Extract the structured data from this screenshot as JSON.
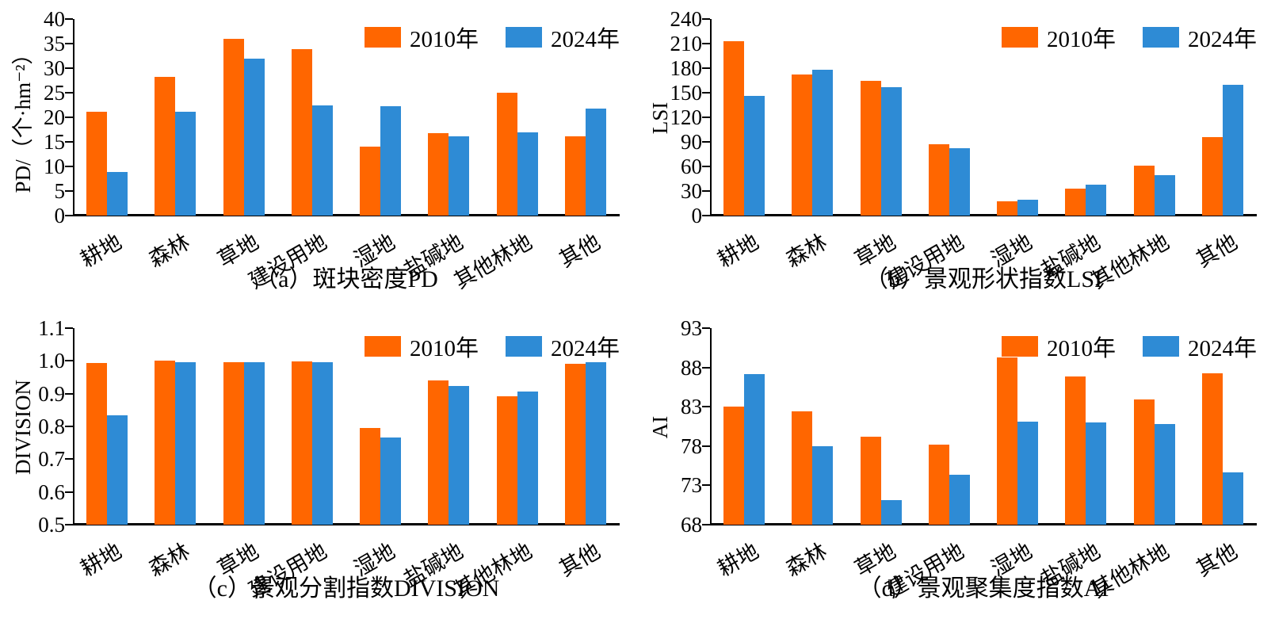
{
  "legend": {
    "labels": [
      "2010年",
      "2024年"
    ]
  },
  "colors": {
    "year2010": "#FF6600",
    "year2024": "#2E8BD5",
    "axis": "#000000"
  },
  "chart_data": [
    {
      "type": "bar",
      "title": "（a）斑块密度PD",
      "ylabel": "PD/（个·hm⁻²）",
      "xlabel": "",
      "categories": [
        "耕地",
        "森林",
        "草地",
        "建设用地",
        "湿地",
        "盐碱地",
        "其他林地",
        "其他"
      ],
      "series": [
        {
          "name": "2010年",
          "color": "#FF6600",
          "values": [
            21.1,
            28.3,
            36.0,
            33.9,
            14.0,
            16.7,
            25.0,
            16.2
          ]
        },
        {
          "name": "2024年",
          "color": "#2E8BD5",
          "values": [
            8.9,
            21.1,
            32.0,
            22.5,
            22.2,
            16.2,
            17.0,
            21.7
          ]
        }
      ],
      "ylim": [
        0,
        40
      ],
      "yticks": [
        "0",
        "5",
        "10",
        "15",
        "20",
        "25",
        "30",
        "35",
        "40"
      ],
      "grid": false,
      "legend_position": "top-right"
    },
    {
      "type": "bar",
      "title": "（b）景观形状指数LSI",
      "ylabel": "LSI",
      "xlabel": "",
      "categories": [
        "耕地",
        "森林",
        "草地",
        "建设用地",
        "湿地",
        "盐碱地",
        "其他林地",
        "其他"
      ],
      "series": [
        {
          "name": "2010年",
          "color": "#FF6600",
          "values": [
            213,
            172,
            165,
            87,
            17,
            33,
            61,
            96
          ]
        },
        {
          "name": "2024年",
          "color": "#2E8BD5",
          "values": [
            146,
            178,
            157,
            82,
            19,
            38,
            49,
            160
          ]
        }
      ],
      "ylim": [
        0,
        240
      ],
      "yticks": [
        "0",
        "30",
        "60",
        "90",
        "120",
        "150",
        "180",
        "210",
        "240"
      ],
      "grid": false,
      "legend_position": "top-right"
    },
    {
      "type": "bar",
      "title": "（c）景观分割指数DIVISION",
      "ylabel": "DIVISION",
      "xlabel": "",
      "categories": [
        "耕地",
        "森林",
        "草地",
        "建设用地",
        "湿地",
        "盐碱地",
        "其他林地",
        "其他"
      ],
      "series": [
        {
          "name": "2010年",
          "color": "#FF6600",
          "values": [
            0.994,
            1.0,
            0.996,
            0.998,
            0.795,
            0.94,
            0.893,
            0.99
          ]
        },
        {
          "name": "2024年",
          "color": "#2E8BD5",
          "values": [
            0.833,
            0.995,
            0.996,
            0.996,
            0.765,
            0.923,
            0.906,
            0.995
          ]
        }
      ],
      "ylim": [
        0.5,
        1.1
      ],
      "yticks": [
        "0.5",
        "0.6",
        "0.7",
        "0.8",
        "0.9",
        "1.0",
        "1.1"
      ],
      "grid": false,
      "legend_position": "top-right"
    },
    {
      "type": "bar",
      "title": "（d）景观聚集度指数AI",
      "ylabel": "AI",
      "xlabel": "",
      "categories": [
        "耕地",
        "森林",
        "草地",
        "建设用地",
        "湿地",
        "盐碱地",
        "其他林地",
        "其他"
      ],
      "series": [
        {
          "name": "2010年",
          "color": "#FF6600",
          "values": [
            83.0,
            82.4,
            79.2,
            78.2,
            89.3,
            86.9,
            83.9,
            87.3
          ]
        },
        {
          "name": "2024年",
          "color": "#2E8BD5",
          "values": [
            87.2,
            78.0,
            71.1,
            74.4,
            81.1,
            81.0,
            80.8,
            74.7
          ]
        }
      ],
      "ylim": [
        68,
        93
      ],
      "yticks": [
        "68",
        "73",
        "78",
        "83",
        "88",
        "93"
      ],
      "grid": false,
      "legend_position": "top-right"
    }
  ]
}
